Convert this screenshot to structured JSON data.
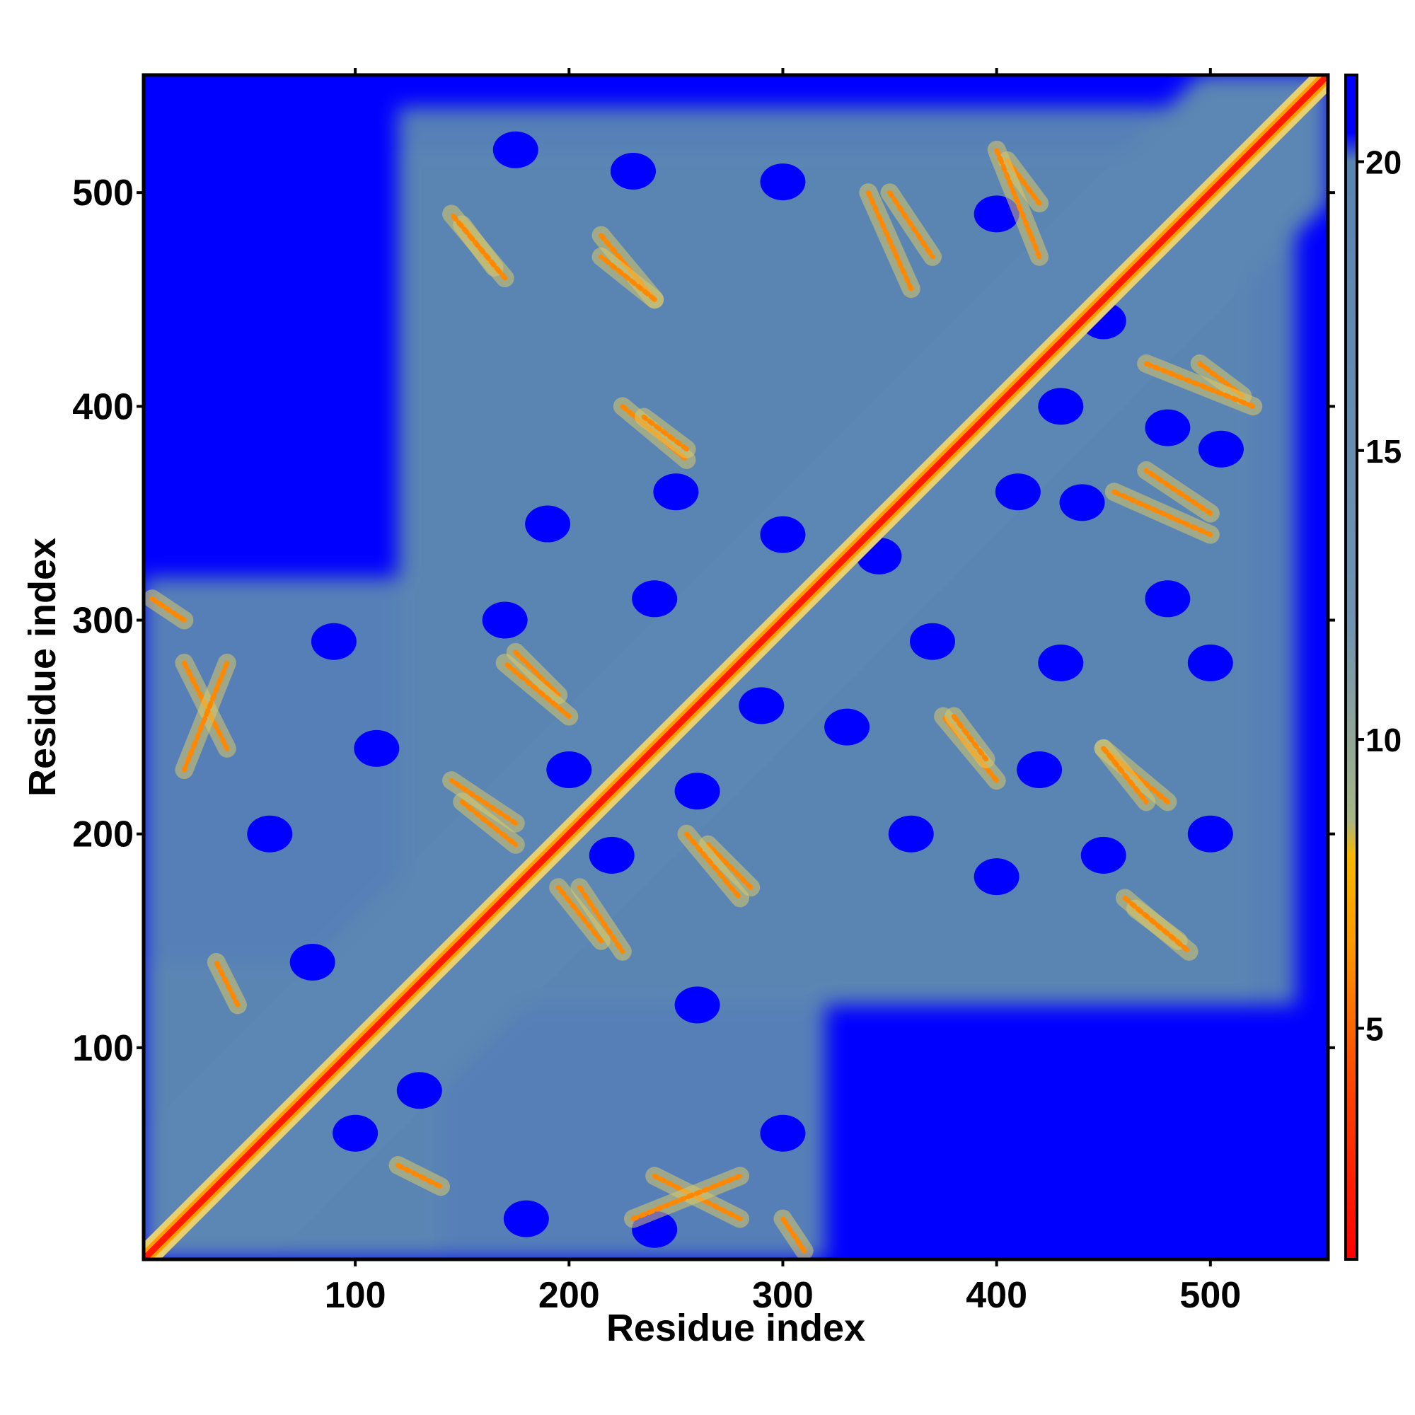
{
  "chart_data": {
    "type": "heatmap",
    "xlabel": "Residue index",
    "ylabel": "Residue index",
    "xlim": [
      1,
      555
    ],
    "ylim": [
      1,
      555
    ],
    "x_ticks": [
      "100",
      "200",
      "300",
      "400",
      "500"
    ],
    "y_ticks": [
      "100",
      "200",
      "300",
      "400",
      "500"
    ],
    "colorbar": {
      "range": [
        1,
        21.5
      ],
      "ticks": [
        "5",
        "10",
        "15",
        "20"
      ],
      "colors": [
        {
          "value": 1,
          "color": "#ff0000"
        },
        {
          "value": 4,
          "color": "#ff4400"
        },
        {
          "value": 6.5,
          "color": "#ff9900"
        },
        {
          "value": 8,
          "color": "#f5b800"
        },
        {
          "value": 8.6,
          "color": "#a8b585"
        },
        {
          "value": 12,
          "color": "#6f93b0"
        },
        {
          "value": 20,
          "color": "#5984b2"
        },
        {
          "value": 20.5,
          "color": "#0000ff"
        },
        {
          "value": 21.5,
          "color": "#0000ff"
        }
      ]
    },
    "background_color": "#0000ff",
    "contact_color": "#5b86b3",
    "diagonal_color": "#ff1a00",
    "description_of_values": "Pairwise residue distance map; diagonal (i = j) is minimum distance, blue regions are distances above 20",
    "features": {
      "contact_blocks": [
        {
          "x_range": [
            1,
            140
          ],
          "y_range": [
            1,
            320
          ]
        },
        {
          "x_range": [
            1,
            320
          ],
          "y_range": [
            1,
            140
          ]
        },
        {
          "x_range": [
            120,
            520
          ],
          "y_range": [
            120,
            540
          ]
        },
        {
          "x_range": [
            120,
            540
          ],
          "y_range": [
            120,
            520
          ]
        }
      ],
      "strand_pairs": [
        {
          "x_range": [
            150,
            165
          ],
          "y_range": [
            485,
            465
          ]
        },
        {
          "x_range": [
            215,
            240
          ],
          "y_range": [
            480,
            450
          ]
        },
        {
          "x_range": [
            225,
            255
          ],
          "y_range": [
            400,
            375
          ]
        },
        {
          "x_range": [
            175,
            195
          ],
          "y_range": [
            285,
            265
          ]
        },
        {
          "x_range": [
            255,
            280
          ],
          "y_range": [
            200,
            170
          ]
        },
        {
          "x_range": [
            150,
            175
          ],
          "y_range": [
            215,
            195
          ]
        },
        {
          "x_range": [
            205,
            225
          ],
          "y_range": [
            175,
            145
          ]
        },
        {
          "x_range": [
            350,
            370
          ],
          "y_range": [
            500,
            470
          ]
        },
        {
          "x_range": [
            405,
            420
          ],
          "y_range": [
            515,
            495
          ]
        },
        {
          "x_range": [
            470,
            520
          ],
          "y_range": [
            420,
            400
          ]
        },
        {
          "x_range": [
            455,
            500
          ],
          "y_range": [
            360,
            340
          ]
        },
        {
          "x_range": [
            380,
            395
          ],
          "y_range": [
            255,
            235
          ]
        },
        {
          "x_range": [
            450,
            470
          ],
          "y_range": [
            240,
            215
          ]
        },
        {
          "x_range": [
            460,
            490
          ],
          "y_range": [
            170,
            145
          ]
        },
        {
          "x_range": [
            20,
            40
          ],
          "y_range": [
            280,
            240
          ]
        },
        {
          "x_range": [
            5,
            20
          ],
          "y_range": [
            310,
            300
          ]
        },
        {
          "x_range": [
            230,
            280
          ],
          "y_range": [
            20,
            40
          ]
        },
        {
          "x_range": [
            120,
            140
          ],
          "y_range": [
            45,
            35
          ]
        }
      ]
    }
  }
}
